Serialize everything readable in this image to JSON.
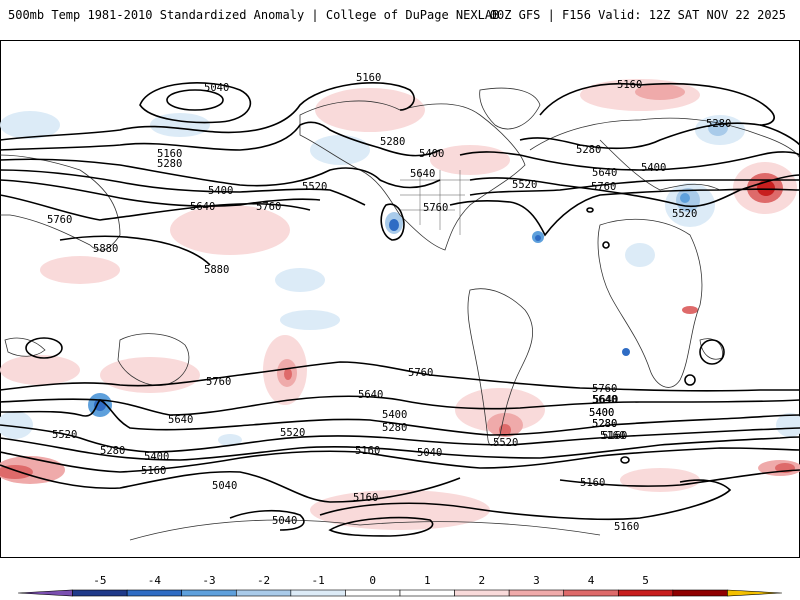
{
  "header": {
    "title": "500mb Temp 1981-2010 Standardized Anomaly | College of DuPage NEXLAB",
    "run_info": "00Z GFS | F156 Valid: 12Z SAT NOV 22 2025"
  },
  "map": {
    "contour_labels": [
      {
        "id": "c5040-a",
        "text": "5040"
      },
      {
        "id": "c5160-a",
        "text": "5160"
      },
      {
        "id": "c5160-b",
        "text": "5160"
      },
      {
        "id": "c5160-c",
        "text": "5160"
      },
      {
        "id": "c5280-a",
        "text": "5280"
      },
      {
        "id": "c5280-b",
        "text": "5280"
      },
      {
        "id": "c5280-c",
        "text": "5280"
      },
      {
        "id": "c5280-d",
        "text": "5280"
      },
      {
        "id": "c5400-a",
        "text": "5400"
      },
      {
        "id": "c5400-b",
        "text": "5400"
      },
      {
        "id": "c5400-c",
        "text": "5400"
      },
      {
        "id": "c5520-a",
        "text": "5520"
      },
      {
        "id": "c5520-b",
        "text": "5520"
      },
      {
        "id": "c5520-c",
        "text": "5520"
      },
      {
        "id": "c5640-a",
        "text": "5640"
      },
      {
        "id": "c5640-b",
        "text": "5640"
      },
      {
        "id": "c5640-c",
        "text": "5640"
      },
      {
        "id": "c5760-a",
        "text": "5760"
      },
      {
        "id": "c5760-b",
        "text": "5760"
      },
      {
        "id": "c5760-c",
        "text": "5760"
      },
      {
        "id": "c5760-d",
        "text": "5760"
      },
      {
        "id": "c5880-a",
        "text": "5880"
      },
      {
        "id": "c5880-b",
        "text": "5880"
      },
      {
        "id": "c5760-e",
        "text": "5760"
      },
      {
        "id": "c5640-d",
        "text": "5640"
      },
      {
        "id": "c5520-d",
        "text": "5520"
      },
      {
        "id": "c5400-d",
        "text": "5400"
      },
      {
        "id": "c5280-e",
        "text": "5280"
      },
      {
        "id": "c5160-d",
        "text": "5160"
      },
      {
        "id": "c5040-b",
        "text": "5040"
      },
      {
        "id": "c5760-f",
        "text": "5760"
      },
      {
        "id": "c5640-e",
        "text": "5640"
      },
      {
        "id": "c5400-e",
        "text": "5400"
      },
      {
        "id": "c5280-f",
        "text": "5280"
      },
      {
        "id": "c5520-e",
        "text": "5520"
      },
      {
        "id": "c5160-e",
        "text": "5160"
      },
      {
        "id": "c5040-c",
        "text": "5040"
      },
      {
        "id": "c5640-f",
        "text": "5640"
      },
      {
        "id": "c5280-g",
        "text": "5280"
      },
      {
        "id": "c5400-f",
        "text": "5400"
      },
      {
        "id": "c5520-f",
        "text": "5520"
      },
      {
        "id": "c5160-f",
        "text": "5160"
      },
      {
        "id": "c5040-d",
        "text": "5040"
      },
      {
        "id": "c5160-g",
        "text": "5160"
      },
      {
        "id": "c5760-g",
        "text": "5760"
      },
      {
        "id": "c5640-g",
        "text": "5640"
      },
      {
        "id": "c5400-g",
        "text": "5400"
      },
      {
        "id": "c5280-h",
        "text": "5280"
      },
      {
        "id": "c5160-h",
        "text": "5160"
      },
      {
        "id": "c5160-i",
        "text": "5160"
      },
      {
        "id": "c5160-j",
        "text": "5160"
      }
    ]
  },
  "colorbar": {
    "labels": [
      "-5",
      "-4",
      "-3",
      "-2",
      "-1",
      "0",
      "1",
      "2",
      "3",
      "4",
      "5"
    ],
    "colors": [
      "#7a4fb0",
      "#1f3a8a",
      "#2f6cc4",
      "#5ea0dc",
      "#a9cbea",
      "#dcebf7",
      "#ffffff",
      "#ffffff",
      "#f9dada",
      "#efaaaa",
      "#de6a6a",
      "#c81e1e",
      "#8f0000",
      "#f3c000"
    ]
  }
}
